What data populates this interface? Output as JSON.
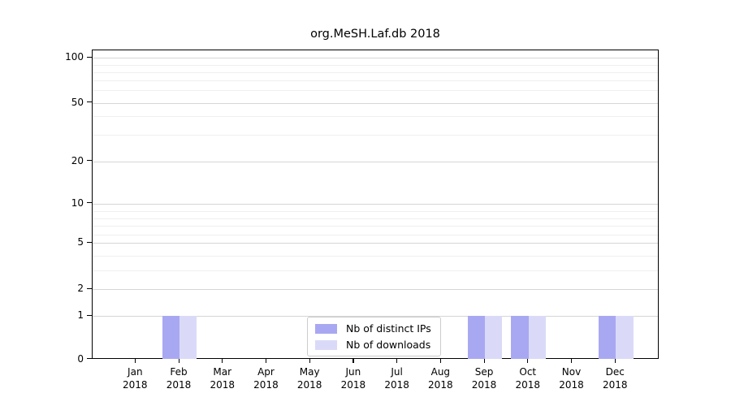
{
  "chart_data": {
    "type": "bar",
    "title": "org.MeSH.Laf.db 2018",
    "x_categories": [
      "Jan",
      "Feb",
      "Mar",
      "Apr",
      "May",
      "Jun",
      "Jul",
      "Aug",
      "Sep",
      "Oct",
      "Nov",
      "Dec"
    ],
    "x_year_label": "2018",
    "series": [
      {
        "name": "Nb of distinct IPs",
        "color": "#a8a8f2",
        "values": [
          0,
          1,
          0,
          0,
          0,
          0,
          0,
          0,
          1,
          1,
          0,
          1
        ]
      },
      {
        "name": "Nb of downloads",
        "color": "#dadaf8",
        "values": [
          0,
          1,
          0,
          0,
          0,
          0,
          0,
          0,
          1,
          1,
          0,
          1
        ]
      }
    ],
    "y_axis": {
      "scale": "log-like",
      "tick_labels": [
        0,
        1,
        2,
        5,
        10,
        20,
        50,
        100
      ],
      "minor_gridline_values": [
        3,
        4,
        6,
        7,
        8,
        9,
        30,
        40,
        60,
        70,
        80,
        90
      ]
    },
    "legend": {
      "entries": [
        "Nb of distinct IPs",
        "Nb of downloads"
      ],
      "position": "bottom-center"
    },
    "grid": true
  },
  "colors": {
    "grid_major": "#d6d6d6",
    "grid_minor": "#efefef",
    "axis": "#000000",
    "legend_border": "#cccccc",
    "background": "#ffffff"
  }
}
